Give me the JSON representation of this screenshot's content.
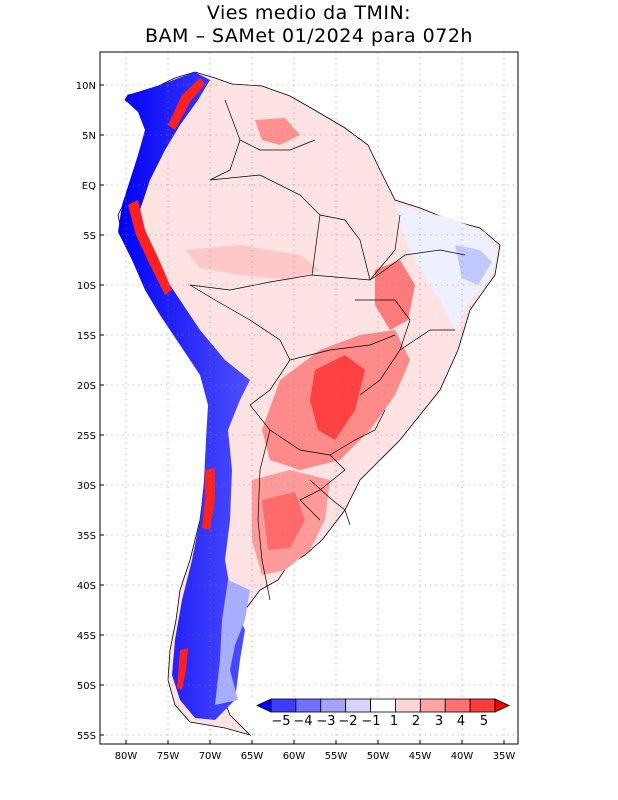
{
  "title": {
    "line1": "Vies medio da TMIN:",
    "line2": "BAM – SAMet 01/2024  para 072h"
  },
  "axes": {
    "y_ticks": [
      "10N",
      "5N",
      "EQ",
      "5S",
      "10S",
      "15S",
      "20S",
      "25S",
      "30S",
      "35S",
      "40S",
      "45S",
      "50S",
      "55S"
    ],
    "x_ticks": [
      "80W",
      "75W",
      "70W",
      "65W",
      "60W",
      "55W",
      "50W",
      "45W",
      "40W",
      "35W"
    ]
  },
  "colorbar": {
    "labels": [
      "−5",
      "−4",
      "−3",
      "−2",
      "−1",
      "1",
      "2",
      "3",
      "4",
      "5"
    ],
    "colors": [
      "#0000f5",
      "#3c3cff",
      "#7070ff",
      "#a3a3ff",
      "#d4d4ff",
      "#ffffff",
      "#ffd4d4",
      "#ffa3a3",
      "#ff7070",
      "#ff3c3c",
      "#f50000"
    ]
  },
  "map": {
    "lon_range": [
      -83,
      -35
    ],
    "lat_range": [
      -56,
      13
    ],
    "grid": true
  }
}
